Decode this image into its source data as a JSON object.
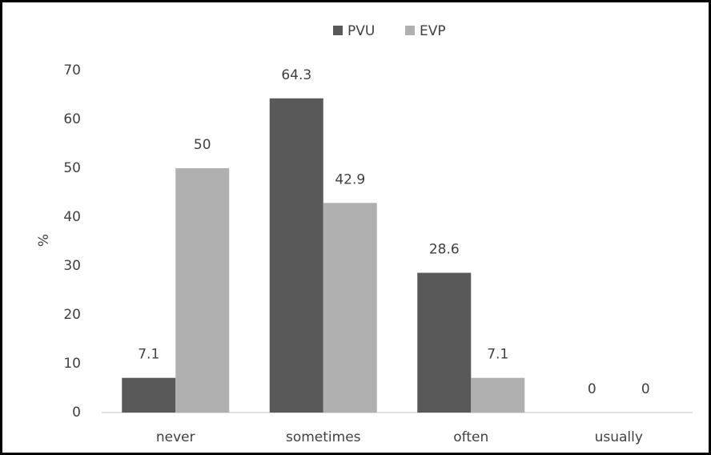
{
  "chart_data": {
    "type": "bar",
    "y_label": "%",
    "categories": [
      "never",
      "sometimes",
      "often",
      "usually"
    ],
    "series": [
      {
        "name": "PVU",
        "color": "#595959",
        "values": [
          7.1,
          64.3,
          28.6,
          0
        ]
      },
      {
        "name": "EVP",
        "color": "#b0b0b0",
        "values": [
          50,
          42.9,
          7.1,
          0
        ]
      }
    ],
    "ylim": [
      0,
      70
    ],
    "yticks": [
      0,
      10,
      20,
      30,
      40,
      50,
      60,
      70
    ],
    "grid": false,
    "legend": "top"
  }
}
